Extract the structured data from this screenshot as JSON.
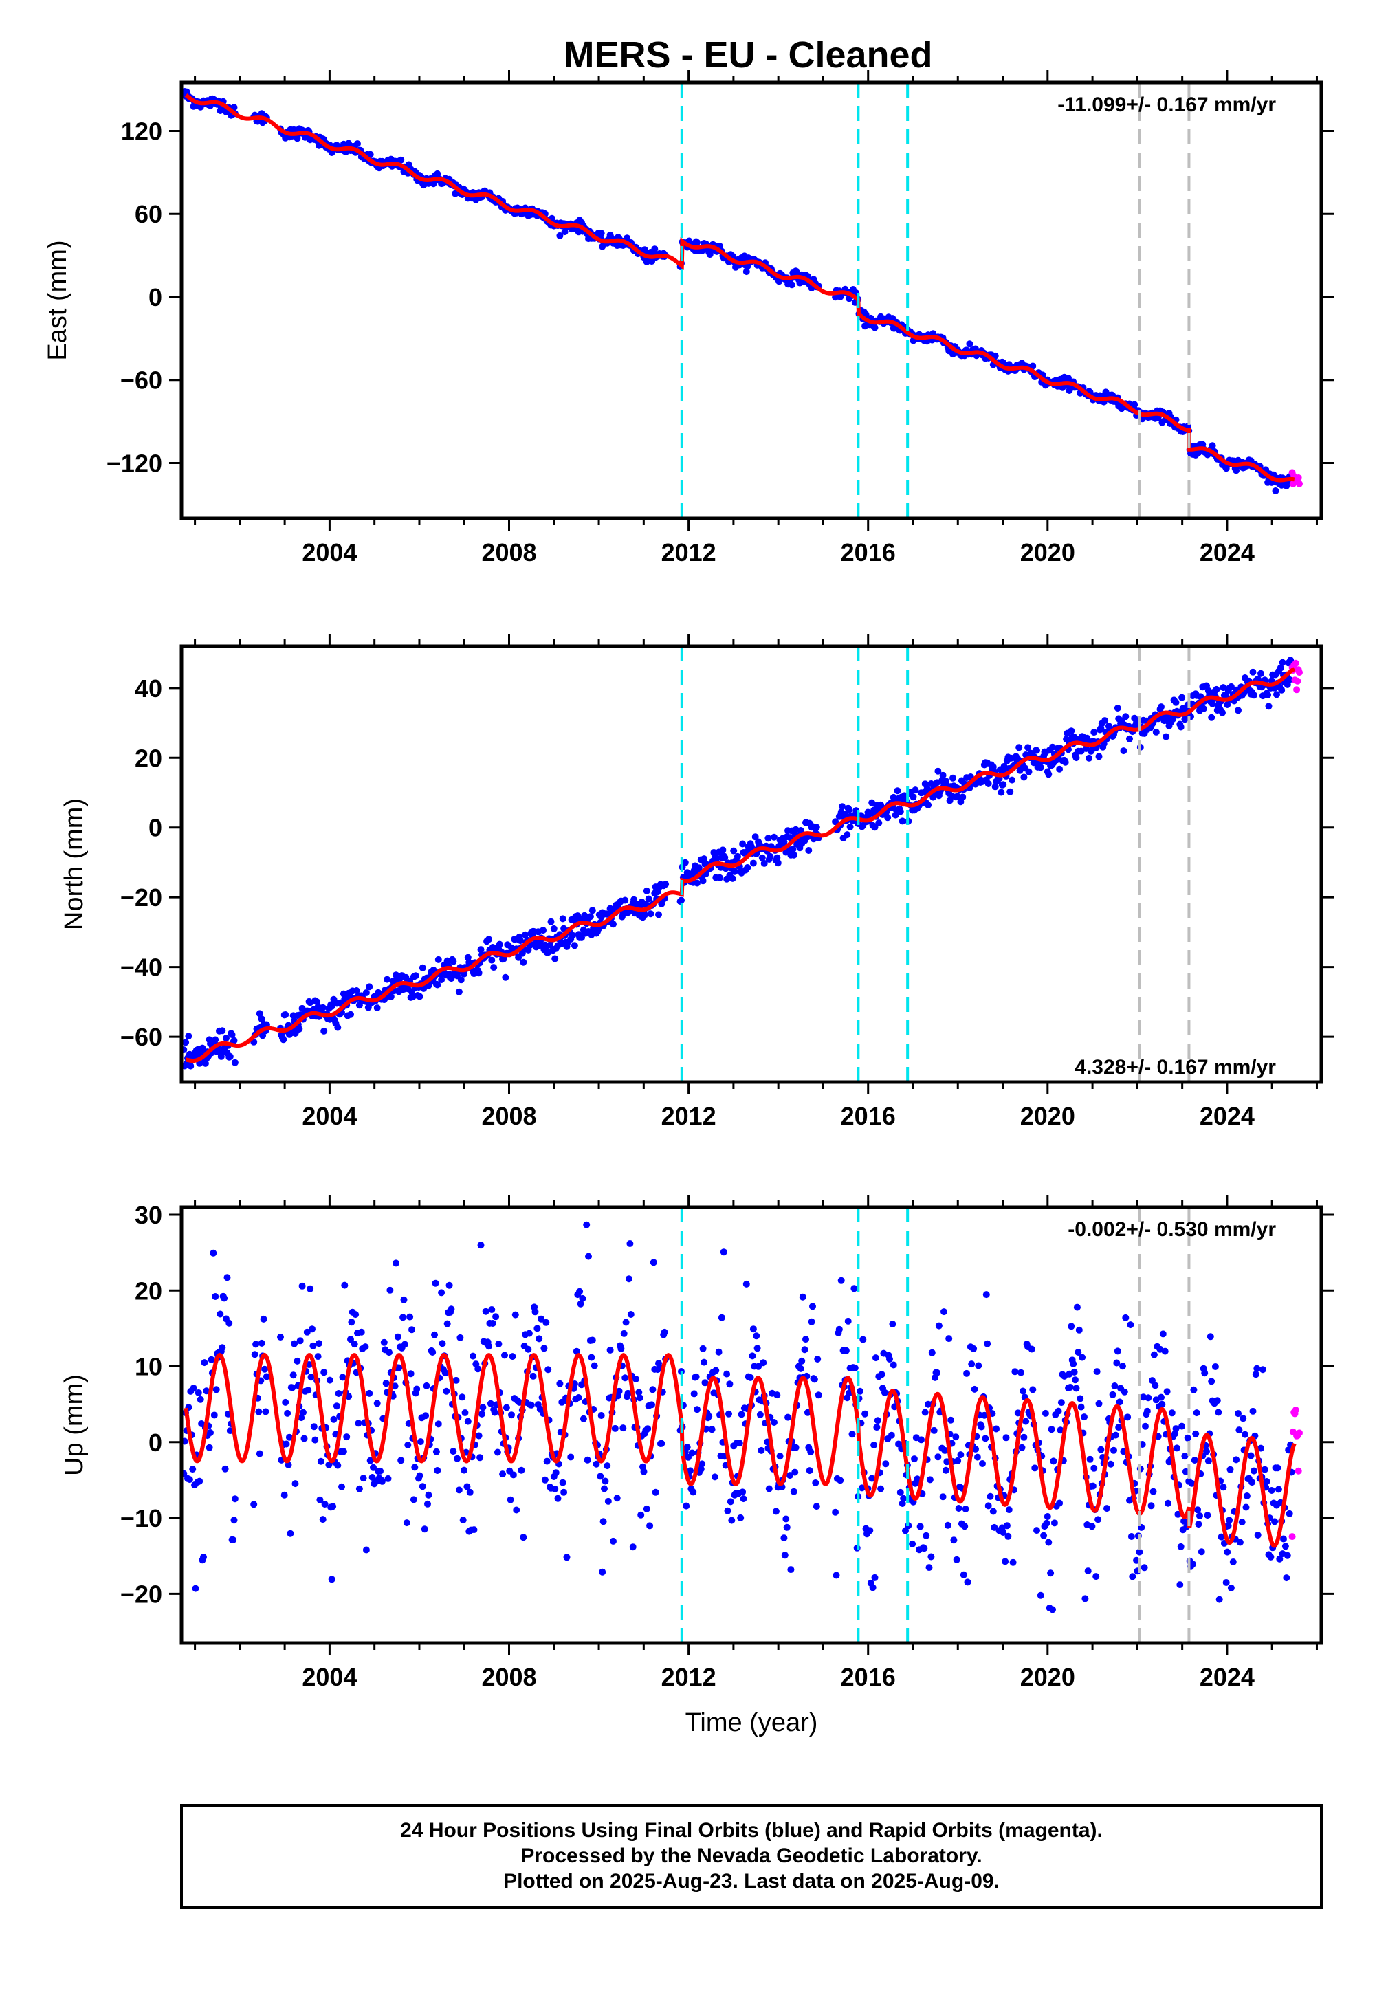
{
  "title": "MERS  - EU - Cleaned",
  "colors": {
    "final_orbits": "#0000ff",
    "rapid_orbits": "#ff00ff",
    "model": "#ff0000",
    "event_cyan": "#00e5ee",
    "event_gray": "#bebebe"
  },
  "footer": {
    "line1": "24 Hour Positions Using Final Orbits (blue) and Rapid Orbits (magenta).",
    "line2": "Processed by the Nevada Geodetic Laboratory.",
    "line3": "Plotted on 2025-Aug-23. Last data on 2025-Aug-09."
  },
  "chart_data": [
    {
      "type": "scatter",
      "panel": "east",
      "ylabel": "East (mm)",
      "xlabel": "",
      "rate_text": "-11.099+/- 0.167 mm/yr",
      "rate_position": "top-right",
      "xlim": [
        2000.7,
        2026.1
      ],
      "ylim": [
        -160,
        155
      ],
      "x_ticks": [
        2004,
        2008,
        2012,
        2016,
        2020,
        2024
      ],
      "y_ticks": [
        120,
        60,
        0,
        -60,
        -120
      ],
      "y_tick_labels": [
        "120",
        "60",
        "0",
        "−60",
        "−120"
      ],
      "event_lines": {
        "cyan": [
          2011.85,
          2015.78,
          2016.88
        ],
        "gray": [
          2022.05,
          2023.15
        ]
      },
      "model": {
        "rate": -11.099,
        "offsets": [
          {
            "year": 2011.85,
            "step": 18
          },
          {
            "year": 2015.78,
            "step": -10
          },
          {
            "year": 2023.15,
            "step": -14
          }
        ],
        "anchor": {
          "year": 2000.7,
          "value": 147
        },
        "annual_amplitude": 2.5,
        "series": [
          {
            "x": 2000.8,
            "y": 146
          },
          {
            "x": 2002.0,
            "y": 135
          },
          {
            "x": 2004.0,
            "y": 114
          },
          {
            "x": 2006.0,
            "y": 92
          },
          {
            "x": 2008.0,
            "y": 69
          },
          {
            "x": 2010.0,
            "y": 48
          },
          {
            "x": 2011.85,
            "y": 26
          },
          {
            "x": 2011.86,
            "y": 44
          },
          {
            "x": 2014.0,
            "y": 20
          },
          {
            "x": 2015.78,
            "y": 0
          },
          {
            "x": 2015.79,
            "y": -20
          },
          {
            "x": 2018.0,
            "y": -40
          },
          {
            "x": 2020.0,
            "y": -63
          },
          {
            "x": 2022.0,
            "y": -84
          },
          {
            "x": 2023.15,
            "y": -97
          },
          {
            "x": 2023.16,
            "y": -115
          },
          {
            "x": 2025.4,
            "y": -143
          }
        ]
      },
      "scatter_sigma": 2.0
    },
    {
      "type": "scatter",
      "panel": "north",
      "ylabel": "North (mm)",
      "xlabel": "",
      "rate_text": "4.328+/- 0.167 mm/yr",
      "rate_position": "bottom-right",
      "xlim": [
        2000.7,
        2026.1
      ],
      "ylim": [
        -73,
        52
      ],
      "x_ticks": [
        2004,
        2008,
        2012,
        2016,
        2020,
        2024
      ],
      "y_ticks": [
        40,
        20,
        0,
        -20,
        -40,
        -60
      ],
      "y_tick_labels": [
        "40",
        "20",
        "0",
        "−20",
        "−40",
        "−60"
      ],
      "event_lines": {
        "cyan": [
          2011.85,
          2015.78,
          2016.88
        ],
        "gray": [
          2022.05,
          2023.15
        ]
      },
      "model": {
        "rate": 4.328,
        "offsets": [
          {
            "year": 2011.85,
            "step": 4
          }
        ],
        "anchor": {
          "year": 2000.7,
          "value": -67
        },
        "annual_amplitude": 1.2,
        "series": [
          {
            "x": 2000.8,
            "y": -66
          },
          {
            "x": 2004.0,
            "y": -52
          },
          {
            "x": 2008.0,
            "y": -33
          },
          {
            "x": 2011.85,
            "y": -18
          },
          {
            "x": 2011.86,
            "y": -14
          },
          {
            "x": 2016.0,
            "y": 2
          },
          {
            "x": 2020.0,
            "y": 16
          },
          {
            "x": 2023.0,
            "y": 32
          },
          {
            "x": 2025.4,
            "y": 46
          }
        ]
      },
      "scatter_sigma": 2.2
    },
    {
      "type": "scatter",
      "panel": "up",
      "ylabel": "Up (mm)",
      "xlabel": "Time (year)",
      "rate_text": "-0.002+/- 0.530 mm/yr",
      "rate_position": "top-right",
      "xlim": [
        2000.7,
        2026.1
      ],
      "ylim": [
        -26.5,
        31
      ],
      "x_ticks": [
        2004,
        2008,
        2012,
        2016,
        2020,
        2024
      ],
      "y_ticks": [
        30,
        20,
        10,
        0,
        -10,
        -20
      ],
      "y_tick_labels": [
        "30",
        "20",
        "10",
        "0",
        "−10",
        "−20"
      ],
      "event_lines": {
        "cyan": [
          2011.85,
          2015.78,
          2016.88
        ],
        "gray": [
          2022.05,
          2023.15
        ]
      },
      "model": {
        "rate": -0.002,
        "offsets": [
          {
            "year": 2011.85,
            "step": -3
          },
          {
            "year": 2015.78,
            "step": -1.5
          },
          {
            "year": 2023.15,
            "step": -3
          }
        ],
        "anchor": {
          "year": 2000.7,
          "value": 4.5
        },
        "annual_amplitude": 7.0,
        "series": [
          {
            "x": 2001.0,
            "y": 9
          },
          {
            "x": 2001.5,
            "y": -2
          },
          {
            "x": 2002.0,
            "y": 11
          },
          {
            "x": 2006.0,
            "y": 11
          },
          {
            "x": 2011.6,
            "y": 11
          },
          {
            "x": 2013.0,
            "y": 8
          },
          {
            "x": 2016.0,
            "y": 7
          },
          {
            "x": 2020.0,
            "y": 6
          },
          {
            "x": 2022.6,
            "y": 8
          },
          {
            "x": 2025.0,
            "y": -12
          }
        ]
      },
      "scatter_sigma": 6.0
    }
  ]
}
